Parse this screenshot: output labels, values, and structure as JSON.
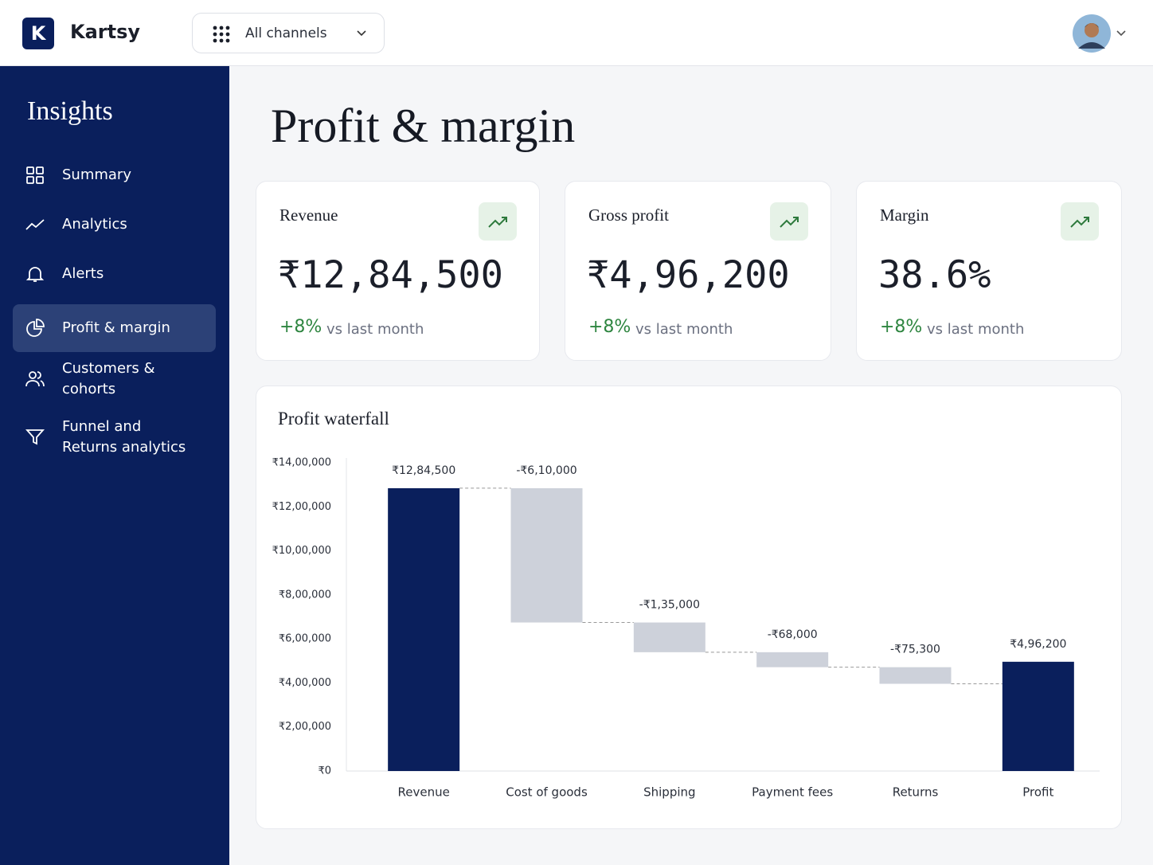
{
  "header": {
    "logo": "K",
    "brand": "Kartsy",
    "channel": "All channels"
  },
  "sidebar": {
    "title": "Insights",
    "items": [
      "Summary",
      "Analytics",
      "Alerts",
      "Profit & margin",
      "Customers & cohorts",
      "Funnel and Returns analytics"
    ]
  },
  "page_title": "Profit & margin",
  "kpis": [
    {
      "label": "Revenue",
      "value": "₹12,84,500",
      "change": "+8%",
      "note": "vs last month"
    },
    {
      "label": "Gross profit",
      "value": "₹4,96,200",
      "change": "+8%",
      "note": "vs last month"
    },
    {
      "label": "Margin",
      "value": "38.6%",
      "change": "+8%",
      "note": "vs last month"
    }
  ],
  "chart_data": {
    "type": "waterfall",
    "title": "Profit waterfall",
    "categories": [
      "Revenue",
      "Cost of goods",
      "Shipping",
      "Payment fees",
      "Returns",
      "Profit"
    ],
    "values": [
      1284500,
      -610000,
      -135000,
      -68000,
      -75300,
      496200
    ],
    "value_labels": [
      "₹12,84,500",
      "-₹6,10,000",
      "-₹1,35,000",
      "-₹68,000",
      "-₹75,300",
      "₹4,96,200"
    ],
    "total_color": "#0a1f5c",
    "delta_color": "#cdd1da",
    "ylim": [
      0,
      1400000
    ],
    "yticks": [
      {
        "value": 0,
        "label": "₹0"
      },
      {
        "value": 200000,
        "label": "₹2,00,000"
      },
      {
        "value": 400000,
        "label": "₹4,00,000"
      },
      {
        "value": 600000,
        "label": "₹6,00,000"
      },
      {
        "value": 800000,
        "label": "₹8,00,000"
      },
      {
        "value": 1000000,
        "label": "₹10,00,000"
      },
      {
        "value": 1200000,
        "label": "₹12,00,000"
      },
      {
        "value": 1400000,
        "label": "₹14,00,000"
      }
    ]
  }
}
